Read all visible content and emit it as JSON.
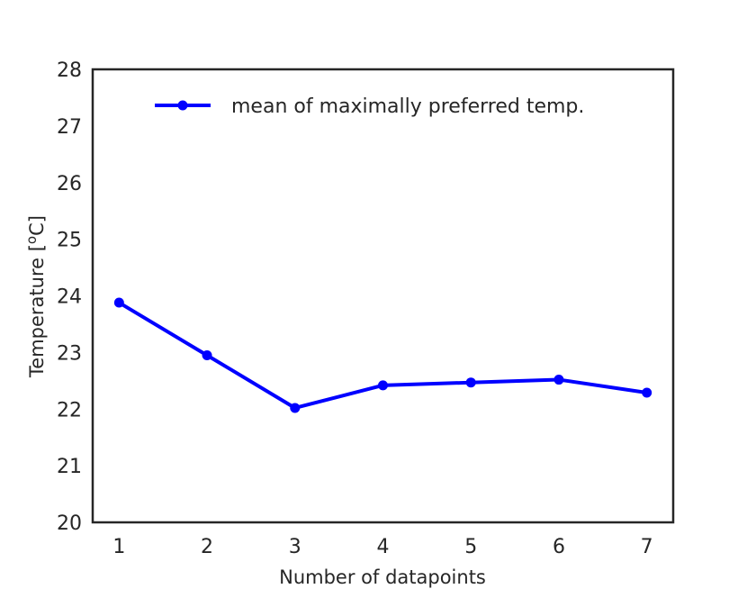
{
  "chart_data": {
    "type": "line",
    "title": "",
    "xlabel": "Number of datapoints",
    "ylabel_main": "Temperature [",
    "ylabel_sup": "o",
    "ylabel_tail": "C]",
    "x": [
      1,
      2,
      3,
      4,
      5,
      6,
      7
    ],
    "xticks": [
      "1",
      "2",
      "3",
      "4",
      "5",
      "6",
      "7"
    ],
    "yticks": [
      "20",
      "21",
      "22",
      "23",
      "24",
      "25",
      "26",
      "27",
      "28"
    ],
    "xlim": [
      0.7,
      7.3
    ],
    "ylim": [
      20,
      28
    ],
    "grid": false,
    "legend_position": "top-right",
    "series": [
      {
        "name": "mean of maximally preferred temp.",
        "color": "#0000ff",
        "marker": "circle",
        "values": [
          23.88,
          22.95,
          22.02,
          22.42,
          22.47,
          22.52,
          22.29
        ]
      }
    ]
  }
}
